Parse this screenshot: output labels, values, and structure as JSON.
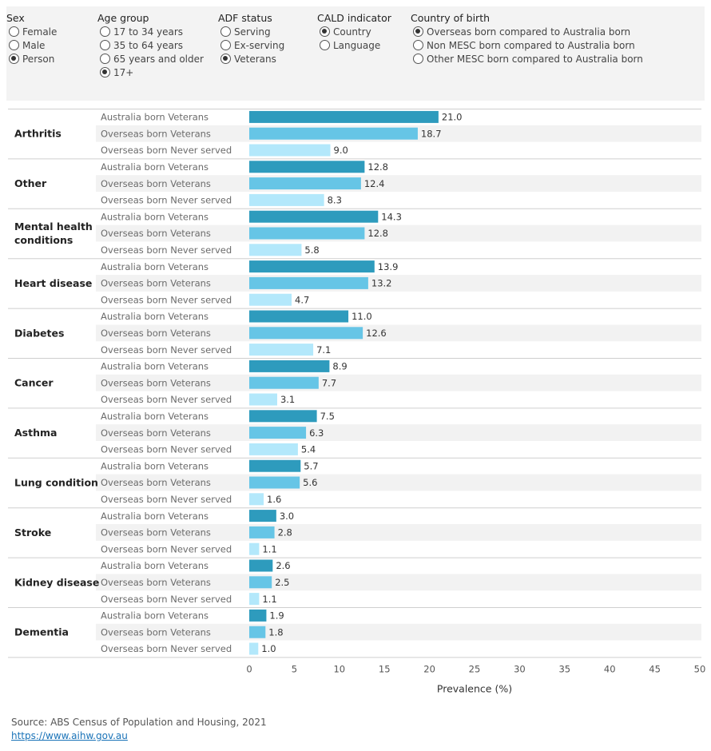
{
  "filters": [
    {
      "title": "Sex",
      "options": [
        {
          "label": "Female",
          "selected": false
        },
        {
          "label": "Male",
          "selected": false
        },
        {
          "label": "Person",
          "selected": true
        }
      ]
    },
    {
      "title": "Age group",
      "options": [
        {
          "label": "17 to 34 years",
          "selected": false
        },
        {
          "label": "35 to 64 years",
          "selected": false
        },
        {
          "label": "65 years and older",
          "selected": false
        },
        {
          "label": "17+",
          "selected": true
        }
      ]
    },
    {
      "title": "ADF status",
      "options": [
        {
          "label": "Serving",
          "selected": false
        },
        {
          "label": "Ex-serving",
          "selected": false
        },
        {
          "label": "Veterans",
          "selected": true
        }
      ]
    },
    {
      "title": "CALD indicator",
      "options": [
        {
          "label": "Country",
          "selected": true
        },
        {
          "label": "Language",
          "selected": false
        }
      ]
    },
    {
      "title": "Country of birth",
      "options": [
        {
          "label": "Overseas born compared to Australia born",
          "selected": true
        },
        {
          "label": "Non MESC born compared to Australia born",
          "selected": false
        },
        {
          "label": "Other MESC born compared to Australia born",
          "selected": false
        }
      ]
    }
  ],
  "chart_data": {
    "type": "bar",
    "orientation": "horizontal",
    "xlabel": "Prevalence (%)",
    "xlim": [
      0,
      50
    ],
    "xticks": [
      "0",
      "5",
      "10",
      "15",
      "20",
      "25",
      "30",
      "35",
      "40",
      "45",
      "50"
    ],
    "series_labels": [
      "Australia born Veterans",
      "Overseas born Veterans",
      "Overseas born Never served"
    ],
    "series_colors": [
      "#2e9bbd",
      "#66c5e6",
      "#b3e8fb"
    ],
    "groups": [
      {
        "name": "Arthritis",
        "values": [
          21.0,
          18.7,
          9.0
        ],
        "labels": [
          "21.0",
          "18.7",
          "9.0"
        ]
      },
      {
        "name": "Other",
        "values": [
          12.8,
          12.4,
          8.3
        ],
        "labels": [
          "12.8",
          "12.4",
          "8.3"
        ]
      },
      {
        "name": "Mental health conditions",
        "values": [
          14.3,
          12.8,
          5.8
        ],
        "labels": [
          "14.3",
          "12.8",
          "5.8"
        ]
      },
      {
        "name": "Heart disease",
        "values": [
          13.9,
          13.2,
          4.7
        ],
        "labels": [
          "13.9",
          "13.2",
          "4.7"
        ]
      },
      {
        "name": "Diabetes",
        "values": [
          11.0,
          12.6,
          7.1
        ],
        "labels": [
          "11.0",
          "12.6",
          "7.1"
        ]
      },
      {
        "name": "Cancer",
        "values": [
          8.9,
          7.7,
          3.1
        ],
        "labels": [
          "8.9",
          "7.7",
          "3.1"
        ]
      },
      {
        "name": "Asthma",
        "values": [
          7.5,
          6.3,
          5.4
        ],
        "labels": [
          "7.5",
          "6.3",
          "5.4"
        ]
      },
      {
        "name": "Lung condition",
        "values": [
          5.7,
          5.6,
          1.6
        ],
        "labels": [
          "5.7",
          "5.6",
          "1.6"
        ]
      },
      {
        "name": "Stroke",
        "values": [
          3.0,
          2.8,
          1.1
        ],
        "labels": [
          "3.0",
          "2.8",
          "1.1"
        ]
      },
      {
        "name": "Kidney disease",
        "values": [
          2.6,
          2.5,
          1.1
        ],
        "labels": [
          "2.6",
          "2.5",
          "1.1"
        ]
      },
      {
        "name": "Dementia",
        "values": [
          1.9,
          1.8,
          1.0
        ],
        "labels": [
          "1.9",
          "1.8",
          "1.0"
        ]
      }
    ]
  },
  "source": {
    "text": "Source: ABS Census of Population and Housing, 2021",
    "link": "https://www.aihw.gov.au"
  }
}
